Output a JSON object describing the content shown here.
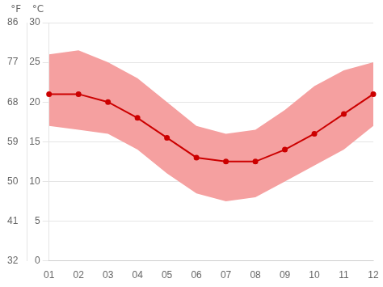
{
  "chart_data": {
    "type": "line",
    "categories": [
      "01",
      "02",
      "03",
      "04",
      "05",
      "06",
      "07",
      "08",
      "09",
      "10",
      "11",
      "12"
    ],
    "series": [
      {
        "type": "band",
        "color": "#f5a0a0",
        "low": [
          17,
          16.5,
          16,
          14,
          11,
          8.5,
          7.5,
          8,
          10,
          12,
          14,
          17
        ],
        "high": [
          26,
          26.5,
          25,
          23,
          20,
          17,
          16,
          16.5,
          19,
          22,
          24,
          25
        ]
      },
      {
        "type": "line",
        "color": "#cc0000",
        "marker": "circle",
        "values": [
          21,
          21,
          20,
          18,
          15.5,
          13,
          12.5,
          12.5,
          14,
          16,
          18.5,
          21
        ]
      }
    ],
    "ylabel": "°C",
    "ylim": [
      0,
      30
    ],
    "yticks": [
      0,
      5,
      10,
      15,
      20,
      25,
      30
    ],
    "y2label": "°F",
    "y2lim": [
      32,
      86
    ],
    "y2ticks": [
      32,
      41,
      50,
      59,
      68,
      77,
      86
    ],
    "grid": true
  }
}
